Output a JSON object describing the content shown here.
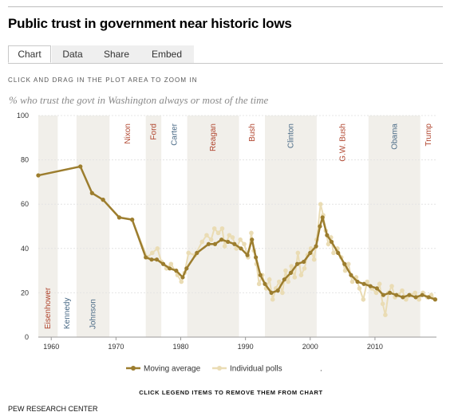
{
  "title": "Public trust in government near historic lows",
  "tabs": [
    {
      "label": "Chart",
      "active": true
    },
    {
      "label": "Data",
      "active": false
    },
    {
      "label": "Share",
      "active": false
    },
    {
      "label": "Embed",
      "active": false
    }
  ],
  "hint": "CLICK AND DRAG IN THE PLOT AREA TO ZOOM IN",
  "subtitle": "% who trust the govt in Washington always or most of the time",
  "legend_note": "CLICK LEGEND ITEMS TO REMOVE THEM FROM CHART",
  "source": "PEW RESEARCH CENTER",
  "legend_trailing": ".",
  "colors": {
    "moving_average": "#9c7d2e",
    "individual_polls": "#eadcb4",
    "band": "#f1efea",
    "republican": "#b0452e",
    "democrat": "#4a6a86"
  },
  "chart_data": {
    "type": "line",
    "xlim": [
      1958,
      2019.5
    ],
    "ylim": [
      0,
      100
    ],
    "x_ticks": [
      1960,
      1970,
      1980,
      1990,
      2000,
      2010
    ],
    "y_ticks": [
      0,
      20,
      40,
      60,
      80,
      100
    ],
    "grid": "horizontal",
    "legend_position": "bottom",
    "presidents": [
      {
        "name": "Eisenhower",
        "start": 1958,
        "end": 1961,
        "party": "R",
        "shaded": true,
        "label_pos": "bottom"
      },
      {
        "name": "Kennedy",
        "start": 1961,
        "end": 1963.9,
        "party": "D",
        "shaded": false,
        "label_pos": "bottom"
      },
      {
        "name": "Johnson",
        "start": 1963.9,
        "end": 1969,
        "party": "D",
        "shaded": true,
        "label_pos": "bottom"
      },
      {
        "name": "Nixon",
        "start": 1969,
        "end": 1974.6,
        "party": "R",
        "shaded": false,
        "label_pos": "top"
      },
      {
        "name": "Ford",
        "start": 1974.6,
        "end": 1977,
        "party": "R",
        "shaded": true,
        "label_pos": "top"
      },
      {
        "name": "Carter",
        "start": 1977,
        "end": 1981,
        "party": "D",
        "shaded": false,
        "label_pos": "top"
      },
      {
        "name": "Reagan",
        "start": 1981,
        "end": 1989,
        "party": "R",
        "shaded": true,
        "label_pos": "top"
      },
      {
        "name": "Bush",
        "start": 1989,
        "end": 1993,
        "party": "R",
        "shaded": false,
        "label_pos": "top"
      },
      {
        "name": "Clinton",
        "start": 1993,
        "end": 2001,
        "party": "D",
        "shaded": true,
        "label_pos": "top"
      },
      {
        "name": "G.W. Bush",
        "start": 2001,
        "end": 2009,
        "party": "R",
        "shaded": false,
        "label_pos": "top"
      },
      {
        "name": "Obama",
        "start": 2009,
        "end": 2017,
        "party": "D",
        "shaded": true,
        "label_pos": "top"
      },
      {
        "name": "Trump",
        "start": 2017,
        "end": 2019.5,
        "party": "R",
        "shaded": false,
        "label_pos": "top"
      }
    ],
    "series": [
      {
        "name": "Moving average",
        "points": [
          [
            1958,
            73
          ],
          [
            1964.5,
            77
          ],
          [
            1966.3,
            65
          ],
          [
            1968,
            62
          ],
          [
            1970.5,
            54
          ],
          [
            1972.5,
            53
          ],
          [
            1974.6,
            36
          ],
          [
            1975.5,
            35
          ],
          [
            1976.3,
            35
          ],
          [
            1977.3,
            33
          ],
          [
            1978.3,
            31
          ],
          [
            1979.3,
            30
          ],
          [
            1980.3,
            27
          ],
          [
            1980.9,
            31
          ],
          [
            1982.5,
            38
          ],
          [
            1984.3,
            42
          ],
          [
            1985.3,
            42
          ],
          [
            1986.3,
            44
          ],
          [
            1987.3,
            43
          ],
          [
            1988.3,
            42
          ],
          [
            1989.3,
            40
          ],
          [
            1990.3,
            37
          ],
          [
            1991.0,
            44
          ],
          [
            1991.6,
            36
          ],
          [
            1992.3,
            28
          ],
          [
            1993.0,
            24
          ],
          [
            1994.0,
            20
          ],
          [
            1995.0,
            21
          ],
          [
            1996.0,
            26
          ],
          [
            1997.0,
            29
          ],
          [
            1998.0,
            33
          ],
          [
            1999.0,
            34
          ],
          [
            2000.0,
            38
          ],
          [
            2000.9,
            41
          ],
          [
            2001.5,
            50
          ],
          [
            2001.9,
            54
          ],
          [
            2002.6,
            46
          ],
          [
            2003.3,
            43
          ],
          [
            2004.3,
            38
          ],
          [
            2005.3,
            33
          ],
          [
            2006.3,
            28
          ],
          [
            2007.3,
            25
          ],
          [
            2008.3,
            24
          ],
          [
            2009.3,
            23
          ],
          [
            2010.3,
            22
          ],
          [
            2011.3,
            19
          ],
          [
            2012.3,
            20
          ],
          [
            2013.3,
            19
          ],
          [
            2014.3,
            18
          ],
          [
            2015.3,
            19
          ],
          [
            2016.3,
            18
          ],
          [
            2017.3,
            19
          ],
          [
            2018.3,
            18
          ],
          [
            2019.3,
            17
          ]
        ]
      },
      {
        "name": "Individual polls",
        "points": [
          [
            1958,
            73
          ],
          [
            1964.5,
            77
          ],
          [
            1966.3,
            65
          ],
          [
            1968,
            62
          ],
          [
            1970.5,
            54
          ],
          [
            1972.5,
            53
          ],
          [
            1974.8,
            36
          ],
          [
            1975.6,
            38
          ],
          [
            1976.4,
            40
          ],
          [
            1977.0,
            34
          ],
          [
            1977.8,
            31
          ],
          [
            1978.5,
            33
          ],
          [
            1979.5,
            28
          ],
          [
            1980.1,
            25
          ],
          [
            1980.6,
            29
          ],
          [
            1981.2,
            38
          ],
          [
            1982.2,
            37
          ],
          [
            1983.3,
            43
          ],
          [
            1984.0,
            46
          ],
          [
            1984.7,
            44
          ],
          [
            1985.2,
            49
          ],
          [
            1985.8,
            47
          ],
          [
            1986.4,
            49
          ],
          [
            1986.8,
            41
          ],
          [
            1987.5,
            46
          ],
          [
            1988.0,
            45
          ],
          [
            1988.6,
            40
          ],
          [
            1989.2,
            44
          ],
          [
            1989.8,
            42
          ],
          [
            1990.4,
            36
          ],
          [
            1990.9,
            47
          ],
          [
            1991.3,
            39
          ],
          [
            1991.7,
            33
          ],
          [
            1992.1,
            24
          ],
          [
            1992.6,
            28
          ],
          [
            1993.2,
            22
          ],
          [
            1993.7,
            26
          ],
          [
            1994.2,
            17
          ],
          [
            1994.7,
            22
          ],
          [
            1995.2,
            25
          ],
          [
            1995.7,
            20
          ],
          [
            1996.2,
            30
          ],
          [
            1996.6,
            25
          ],
          [
            1997.1,
            32
          ],
          [
            1997.6,
            27
          ],
          [
            1998.1,
            38
          ],
          [
            1998.6,
            28
          ],
          [
            1999.1,
            31
          ],
          [
            1999.6,
            37
          ],
          [
            2000.1,
            40
          ],
          [
            2000.6,
            35
          ],
          [
            2001.0,
            44
          ],
          [
            2001.6,
            60
          ],
          [
            2002.0,
            55
          ],
          [
            2002.4,
            48
          ],
          [
            2002.8,
            42
          ],
          [
            2003.2,
            45
          ],
          [
            2003.6,
            38
          ],
          [
            2004.2,
            40
          ],
          [
            2004.8,
            36
          ],
          [
            2005.4,
            30
          ],
          [
            2005.9,
            33
          ],
          [
            2006.5,
            25
          ],
          [
            2007.1,
            27
          ],
          [
            2007.6,
            22
          ],
          [
            2008.2,
            17
          ],
          [
            2008.8,
            25
          ],
          [
            2009.5,
            22
          ],
          [
            2010.2,
            20
          ],
          [
            2010.7,
            24
          ],
          [
            2011.2,
            15
          ],
          [
            2011.6,
            10
          ],
          [
            2012.1,
            20
          ],
          [
            2012.6,
            23
          ],
          [
            2013.1,
            18
          ],
          [
            2013.6,
            19
          ],
          [
            2014.2,
            21
          ],
          [
            2014.8,
            17
          ],
          [
            2015.5,
            19
          ],
          [
            2016.2,
            20
          ],
          [
            2016.8,
            17
          ],
          [
            2017.4,
            20
          ],
          [
            2018.1,
            18
          ],
          [
            2018.7,
            19
          ],
          [
            2019.3,
            17
          ]
        ]
      }
    ]
  }
}
